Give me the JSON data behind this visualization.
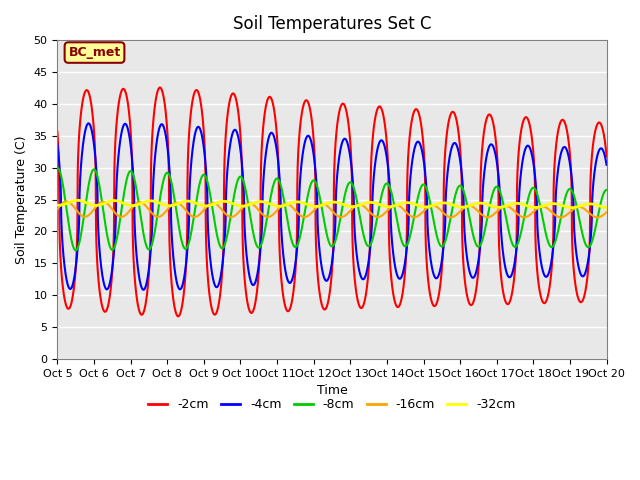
{
  "title": "Soil Temperatures Set C",
  "xlabel": "Time",
  "ylabel": "Soil Temperature (C)",
  "xlim": [
    0,
    15
  ],
  "ylim": [
    0,
    50
  ],
  "yticks": [
    0,
    5,
    10,
    15,
    20,
    25,
    30,
    35,
    40,
    45,
    50
  ],
  "xtick_labels": [
    "Oct 5",
    "Oct 6",
    "Oct 7",
    "Oct 8",
    "Oct 9",
    "Oct 10",
    "Oct 11",
    "Oct 12",
    "Oct 13",
    "Oct 14",
    "Oct 15",
    "Oct 16",
    "Oct 17",
    "Oct 18",
    "Oct 19",
    "Oct 20"
  ],
  "annotation_text": "BC_met",
  "annotation_box_color": "#FFFF99",
  "annotation_text_color": "#8B0000",
  "colors": {
    "-2cm": "#FF0000",
    "-4cm": "#0000FF",
    "-8cm": "#00CC00",
    "-16cm": "#FFA500",
    "-32cm": "#FFFF00"
  },
  "background_color": "#E8E8E8",
  "grid_color": "#FFFFFF",
  "title_fontsize": 12,
  "label_fontsize": 9,
  "tick_fontsize": 8
}
